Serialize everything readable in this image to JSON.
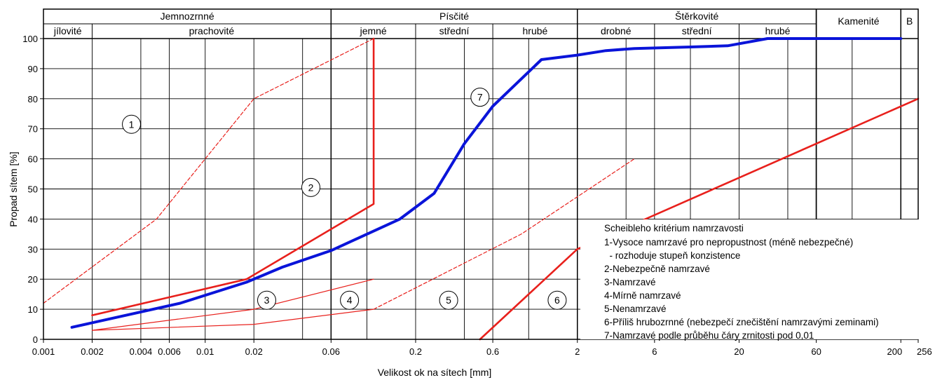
{
  "chart_data": {
    "type": "line",
    "xlabel": "Velikost ok na sítech [mm]",
    "ylabel": "Propad sítem [%]",
    "x_scale": "log",
    "xlim": [
      0.001,
      256
    ],
    "ylim": [
      0,
      100
    ],
    "x_ticks": [
      {
        "value": 0.001,
        "label": "0.001"
      },
      {
        "value": 0.002,
        "label": "0.002"
      },
      {
        "value": 0.004,
        "label": "0.004"
      },
      {
        "value": 0.006,
        "label": "0.006"
      },
      {
        "value": 0.01,
        "label": "0.01"
      },
      {
        "value": 0.02,
        "label": "0.02"
      },
      {
        "value": 0.06,
        "label": "0.06"
      },
      {
        "value": 0.2,
        "label": "0.2"
      },
      {
        "value": 0.6,
        "label": "0.6"
      },
      {
        "value": 2,
        "label": "2"
      },
      {
        "value": 6,
        "label": "6"
      },
      {
        "value": 20,
        "label": "20"
      },
      {
        "value": 60,
        "label": "60"
      },
      {
        "value": 200,
        "label": "200"
      },
      {
        "value": 256,
        "label": "256"
      }
    ],
    "y_ticks": [
      0,
      10,
      20,
      30,
      40,
      50,
      60,
      70,
      80,
      90,
      100
    ],
    "extra_gridlines_x": [
      0.04,
      0.1,
      0.4,
      1,
      4,
      10,
      40,
      100
    ],
    "header_groups": [
      {
        "label": "Jemnozrnné",
        "from": 0.001,
        "to": 0.06
      },
      {
        "label": "Písčité",
        "from": 0.06,
        "to": 2
      },
      {
        "label": "Štěrkovité",
        "from": 2,
        "to": 60
      }
    ],
    "header_tall": [
      {
        "label": "Kamenité",
        "from": 60,
        "to": 200
      },
      {
        "label": "B",
        "from": 200,
        "to": 256
      }
    ],
    "header_sub": [
      {
        "label": "jílovité",
        "from": 0.001,
        "to": 0.002
      },
      {
        "label": "prachovité",
        "from": 0.002,
        "to": 0.06
      },
      {
        "label": "jemné",
        "from": 0.06,
        "to": 0.2
      },
      {
        "label": "střední",
        "from": 0.2,
        "to": 0.6
      },
      {
        "label": "hrubé",
        "from": 0.6,
        "to": 2
      },
      {
        "label": "drobné",
        "from": 2,
        "to": 6
      },
      {
        "label": "střední",
        "from": 6,
        "to": 20
      },
      {
        "label": "hrubé",
        "from": 20,
        "to": 60
      }
    ],
    "series": [
      {
        "id": "1-top",
        "color": "#e8201c",
        "dash": true,
        "width": 1.2,
        "points": [
          [
            0.001,
            12
          ],
          [
            0.005,
            40
          ],
          [
            0.02,
            80
          ],
          [
            0.11,
            100
          ]
        ]
      },
      {
        "id": "2",
        "color": "#e8201c",
        "dash": false,
        "width": 2.6,
        "points": [
          [
            0.002,
            8
          ],
          [
            0.018,
            20
          ],
          [
            0.11,
            45
          ],
          [
            0.11,
            100
          ]
        ]
      },
      {
        "id": "3-4-top",
        "color": "#e8201c",
        "dash": false,
        "width": 1.2,
        "points": [
          [
            0.002,
            3
          ],
          [
            0.02,
            10
          ],
          [
            0.11,
            20
          ]
        ]
      },
      {
        "id": "3-4-bottom",
        "color": "#e8201c",
        "dash": false,
        "width": 1.2,
        "points": [
          [
            0.002,
            3
          ],
          [
            0.02,
            5
          ],
          [
            0.11,
            10
          ]
        ]
      },
      {
        "id": "4-5-boundary",
        "color": "#e8201c",
        "dash": true,
        "width": 1.2,
        "points": [
          [
            0.11,
            10
          ],
          [
            0.9,
            35
          ],
          [
            4.5,
            60
          ]
        ]
      },
      {
        "id": "5-6-boundary",
        "color": "#e8201c",
        "dash": false,
        "width": 2.6,
        "points": [
          [
            0.5,
            0
          ],
          [
            2,
            30
          ],
          [
            256,
            80
          ]
        ]
      },
      {
        "id": "7",
        "color": "#0a14d9",
        "dash": false,
        "width": 4,
        "points": [
          [
            0.0015,
            4
          ],
          [
            0.007,
            12
          ],
          [
            0.018,
            19
          ],
          [
            0.03,
            24
          ],
          [
            0.06,
            29.5
          ],
          [
            0.16,
            40
          ],
          [
            0.26,
            48.5
          ],
          [
            0.4,
            65
          ],
          [
            0.6,
            77.5
          ],
          [
            1.2,
            93
          ],
          [
            2,
            94.5
          ],
          [
            3,
            96
          ],
          [
            4.5,
            96.7
          ],
          [
            10,
            97.2
          ],
          [
            17,
            97.6
          ],
          [
            30,
            100
          ],
          [
            200,
            100
          ]
        ]
      }
    ],
    "region_markers": [
      {
        "label": "1",
        "x": 0.0035,
        "y": 71.5
      },
      {
        "label": "2",
        "x": 0.045,
        "y": 50.5
      },
      {
        "label": "3",
        "x": 0.024,
        "y": 13
      },
      {
        "label": "4",
        "x": 0.078,
        "y": 13
      },
      {
        "label": "5",
        "x": 0.32,
        "y": 13
      },
      {
        "label": "6",
        "x": 1.5,
        "y": 13
      },
      {
        "label": "7",
        "x": 0.5,
        "y": 80.5
      }
    ],
    "legend": {
      "position": "bottom-right",
      "title": "Scheibleho kritérium namrzavosti",
      "lines": [
        "1-Vysoce namrzavé pro nepropustnost (méně nebezpečné)",
        "  - rozhoduje stupeň konzistence",
        "2-Nebezpečně namrzavé",
        "3-Namrzavé",
        "4-Mírně namrzavé",
        "5-Nenamrzavé",
        "6-Příliš hrubozrnné (nebezpečí znečištění namrzavými zeminami)",
        "7-Namrzavé podle průběhu čáry zrnitosti pod 0,01"
      ]
    }
  }
}
